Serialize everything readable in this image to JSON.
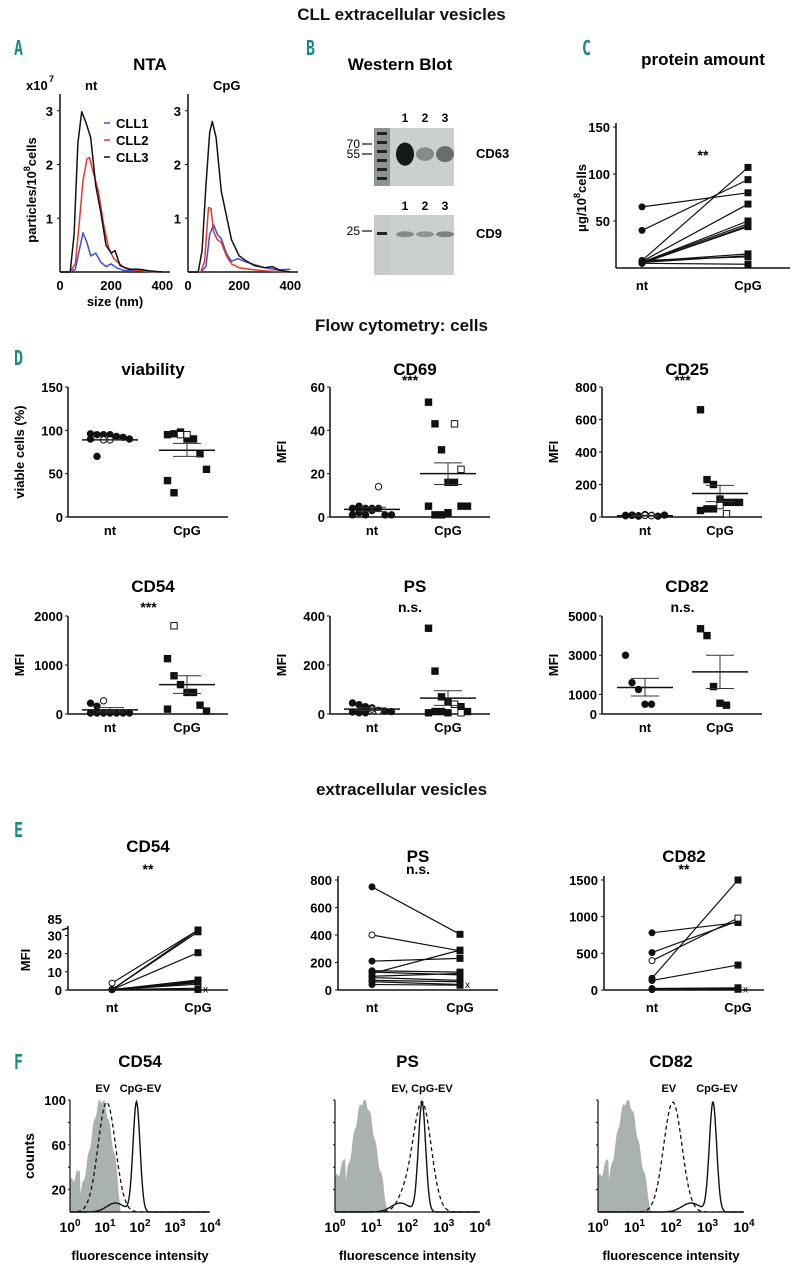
{
  "figure": {
    "main_title": "CLL extracellular vesicles",
    "section_flow_cells": "Flow cytometry: cells",
    "section_ev": "extracellular vesicles",
    "panel_letters": {
      "A": "A",
      "B": "B",
      "C": "C",
      "D": "D",
      "E": "E",
      "F": "F"
    },
    "colors": {
      "accent_letter": "#1a8a87",
      "cll1": "#3a4fd6",
      "cll2": "#e03a2e",
      "cll3": "#111111",
      "histo_fill": "#a9b2b0"
    }
  },
  "chart_data": [
    {
      "id": "A",
      "type": "line",
      "title": "NTA",
      "subplots": [
        {
          "label": "nt",
          "x_ticks": [
            "0",
            "200",
            "400"
          ],
          "xlim": [
            0,
            430
          ],
          "ylim": [
            0,
            3.2
          ],
          "series": [
            {
              "name": "CLL1",
              "color": "#3a4fd6",
              "x": [
                0,
                40,
                60,
                75,
                90,
                105,
                120,
                140,
                160,
                180,
                200,
                220,
                250,
                300,
                350,
                400
              ],
              "y": [
                0,
                0,
                0.05,
                0.4,
                0.73,
                0.55,
                0.3,
                0.35,
                0.18,
                0.1,
                0.15,
                0.08,
                0.03,
                0.03,
                0.01,
                0
              ]
            },
            {
              "name": "CLL2",
              "color": "#e03a2e",
              "x": [
                0,
                40,
                60,
                75,
                90,
                105,
                115,
                130,
                150,
                170,
                190,
                210,
                250,
                300,
                350,
                400
              ],
              "y": [
                0,
                0,
                0.15,
                0.9,
                1.7,
                2.1,
                2.13,
                1.85,
                1.5,
                0.9,
                0.45,
                0.25,
                0.08,
                0.03,
                0.01,
                0
              ]
            },
            {
              "name": "CLL3",
              "color": "#111111",
              "x": [
                0,
                40,
                55,
                70,
                85,
                100,
                120,
                140,
                160,
                180,
                200,
                215,
                235,
                270,
                310,
                350,
                400
              ],
              "y": [
                0,
                0,
                0.7,
                2.4,
                2.98,
                2.8,
                2.5,
                1.6,
                1.1,
                0.5,
                0.35,
                0.4,
                0.12,
                0.05,
                0.05,
                0.02,
                0
              ]
            }
          ]
        },
        {
          "label": "CpG",
          "x_ticks": [
            "0",
            "200",
            "400"
          ],
          "xlim": [
            0,
            430
          ],
          "ylim": [
            0,
            3.2
          ],
          "series": [
            {
              "name": "CLL1",
              "color": "#3a4fd6",
              "x": [
                0,
                50,
                70,
                85,
                100,
                115,
                130,
                150,
                170,
                195,
                220,
                250,
                300,
                350,
                400
              ],
              "y": [
                0,
                0,
                0.1,
                0.7,
                0.88,
                0.7,
                0.62,
                0.35,
                0.2,
                0.25,
                0.2,
                0.15,
                0.08,
                0.04,
                0.05
              ]
            },
            {
              "name": "CLL2",
              "color": "#e03a2e",
              "x": [
                0,
                50,
                65,
                80,
                90,
                100,
                115,
                130,
                150,
                170,
                200,
                240,
                300,
                400
              ],
              "y": [
                0,
                0,
                0.2,
                1.2,
                1.18,
                0.75,
                0.6,
                0.55,
                0.3,
                0.15,
                0.08,
                0.05,
                0.02,
                0
              ]
            },
            {
              "name": "CLL3",
              "color": "#111111",
              "x": [
                0,
                40,
                55,
                70,
                85,
                95,
                110,
                130,
                150,
                170,
                200,
                230,
                260,
                300,
                330,
                360,
                400
              ],
              "y": [
                0,
                0,
                0.4,
                1.6,
                2.6,
                2.8,
                2.5,
                1.5,
                1.05,
                0.6,
                0.3,
                0.2,
                0.12,
                0.08,
                0.1,
                0.03,
                0
              ]
            }
          ]
        }
      ],
      "y_ticks": [
        "1",
        "2",
        "3"
      ],
      "ylabel": "particles/10^8 cells",
      "ylabel_base": "particles/10",
      "ylabel_sup": "8",
      "ylabel_end": "cells",
      "y_multiplier": "x10",
      "y_multiplier_sup": "7",
      "xlabel": "size (nm)",
      "legend": [
        "CLL1",
        "CLL2",
        "CLL3"
      ],
      "legend_position": "top-right"
    },
    {
      "id": "B",
      "type": "image",
      "title": "Western Blot",
      "blots": [
        {
          "target": "CD63",
          "lanes": [
            "1",
            "2",
            "3"
          ],
          "markers": [
            "70",
            "55"
          ],
          "band_intensity": [
            0.95,
            0.35,
            0.5
          ]
        },
        {
          "target": "CD9",
          "lanes": [
            "1",
            "2",
            "3"
          ],
          "markers": [
            "25"
          ],
          "band_intensity": [
            0.35,
            0.3,
            0.4
          ]
        }
      ]
    },
    {
      "id": "C",
      "type": "scatter",
      "title": "protein amount",
      "ylabel_base": "μg/10",
      "ylabel_sup": "8",
      "ylabel_end": "cells",
      "categories": [
        "nt",
        "CpG"
      ],
      "ylim": [
        0,
        150
      ],
      "y_ticks": [
        "50",
        "100",
        "150"
      ],
      "significance": "**",
      "pairs": [
        [
          65,
          80
        ],
        [
          40,
          94
        ],
        [
          8,
          107
        ],
        [
          7,
          68
        ],
        [
          6,
          50
        ],
        [
          6,
          47
        ],
        [
          5,
          44
        ],
        [
          5,
          45
        ],
        [
          7,
          15
        ],
        [
          6,
          13
        ],
        [
          8,
          12
        ],
        [
          5,
          4
        ]
      ]
    },
    {
      "id": "D1",
      "type": "scatter",
      "title": "viability",
      "ylabel": "viable cells (%)",
      "categories": [
        "nt",
        "CpG"
      ],
      "ylim": [
        0,
        150
      ],
      "y_ticks": [
        "0",
        "50",
        "100",
        "150"
      ],
      "significance": "",
      "groups": [
        {
          "name": "nt",
          "filled": [
            96,
            95,
            95,
            95,
            93,
            92,
            90,
            90,
            70
          ],
          "open": [
            89,
            89
          ],
          "mean": 89,
          "sem": [
            89,
            89
          ]
        },
        {
          "name": "CpG",
          "filled": [
            95,
            96,
            98,
            90,
            90,
            73,
            55,
            42,
            28
          ],
          "open": [
            95,
            95
          ],
          "mean": 77,
          "sem": [
            70,
            85
          ]
        }
      ]
    },
    {
      "id": "D2",
      "type": "scatter",
      "title": "CD69",
      "ylabel": "MFI",
      "categories": [
        "nt",
        "CpG"
      ],
      "ylim": [
        0,
        60
      ],
      "y_ticks": [
        "0",
        "20",
        "40",
        "60"
      ],
      "significance": "***",
      "groups": [
        {
          "name": "nt",
          "filled": [
            4,
            5,
            4,
            3,
            4,
            1,
            1,
            1,
            2,
            1,
            4
          ],
          "open": [
            14
          ],
          "mean": 3.5,
          "sem": [
            2.5,
            4.5
          ]
        },
        {
          "name": "CpG",
          "filled": [
            53,
            43,
            31,
            16,
            16,
            5,
            5,
            5,
            1,
            1,
            2
          ],
          "open": [
            43,
            22
          ],
          "mean": 20,
          "sem": [
            15,
            25
          ]
        }
      ]
    },
    {
      "id": "D3",
      "type": "scatter",
      "title": "CD25",
      "ylabel": "MFI",
      "categories": [
        "nt",
        "CpG"
      ],
      "ylim": [
        0,
        800
      ],
      "y_ticks": [
        "0",
        "200",
        "400",
        "600",
        "800"
      ],
      "significance": "***",
      "groups": [
        {
          "name": "nt",
          "filled": [
            10,
            12,
            8,
            15,
            10,
            5,
            12,
            8,
            10,
            5
          ],
          "open": [
            10,
            8
          ],
          "mean": 8,
          "sem": [
            5,
            11
          ]
        },
        {
          "name": "CpG",
          "filled": [
            660,
            230,
            200,
            110,
            90,
            90,
            90,
            40,
            50,
            50
          ],
          "open": [
            70,
            20
          ],
          "mean": 145,
          "sem": [
            95,
            195
          ]
        }
      ]
    },
    {
      "id": "D4",
      "type": "scatter",
      "title": "CD54",
      "ylabel": "MFI",
      "categories": [
        "nt",
        "CpG"
      ],
      "ylim": [
        0,
        2000
      ],
      "y_ticks": [
        "0",
        "1000",
        "2000"
      ],
      "significance": "***",
      "groups": [
        {
          "name": "nt",
          "filled": [
            220,
            160,
            20,
            20,
            20,
            20,
            20,
            20,
            20
          ],
          "open": [
            270
          ],
          "mean": 85,
          "sem": [
            40,
            130
          ]
        },
        {
          "name": "CpG",
          "filled": [
            1130,
            780,
            600,
            440,
            440,
            180,
            60,
            100
          ],
          "open": [
            1800
          ],
          "mean": 600,
          "sem": [
            420,
            780
          ]
        }
      ]
    },
    {
      "id": "D5",
      "type": "scatter",
      "title": "PS",
      "ylabel": "MFI",
      "categories": [
        "nt",
        "CpG"
      ],
      "ylim": [
        0,
        400
      ],
      "y_ticks": [
        "0",
        "200",
        "400"
      ],
      "significance": "n.s.",
      "groups": [
        {
          "name": "nt",
          "filled": [
            45,
            38,
            30,
            25,
            15,
            12,
            10,
            8,
            5,
            5
          ],
          "open": [
            20,
            12
          ],
          "mean": 20,
          "sem": [
            15,
            25
          ]
        },
        {
          "name": "CpG",
          "filled": [
            350,
            175,
            70,
            50,
            40,
            30,
            10,
            5,
            10,
            10,
            5
          ],
          "open": [
            40,
            5
          ],
          "mean": 65,
          "sem": [
            35,
            95
          ]
        }
      ]
    },
    {
      "id": "D6",
      "type": "scatter",
      "title": "CD82",
      "ylabel": "MFI",
      "categories": [
        "nt",
        "CpG"
      ],
      "ylim": [
        0,
        5000
      ],
      "y_ticks": [
        "0",
        "1000",
        "3000",
        "5000"
      ],
      "significance": "n.s.",
      "groups": [
        {
          "name": "nt",
          "filled": [
            3000,
            1600,
            1250,
            500,
            500
          ],
          "open": [],
          "mean": 1350,
          "sem": [
            920,
            1820
          ]
        },
        {
          "name": "CpG",
          "filled": [
            4350,
            4000,
            1400,
            550,
            450
          ],
          "open": [],
          "mean": 2150,
          "sem": [
            1300,
            3000
          ]
        }
      ]
    },
    {
      "id": "E1",
      "type": "scatter",
      "title": "CD54",
      "ylabel": "MFI",
      "categories": [
        "nt",
        "CpG"
      ],
      "ylim": [
        0,
        33
      ],
      "y_ticks": [
        "0",
        "10",
        "20",
        "30"
      ],
      "y_break_label": "85",
      "significance": "**",
      "pairs": [
        [
          3.8,
          34
        ],
        [
          0.2,
          33
        ],
        [
          0.2,
          32
        ],
        [
          0.2,
          20.5
        ],
        [
          0.2,
          5.5
        ],
        [
          0.2,
          5
        ],
        [
          0.2,
          4.5
        ],
        [
          0.2,
          4
        ],
        [
          0.2,
          3.2
        ],
        [
          0.2,
          1
        ],
        [
          0.2,
          0.3
        ]
      ],
      "open_pairs": [
        0,
        9
      ],
      "x_marker": "x"
    },
    {
      "id": "E2",
      "type": "scatter",
      "title": "PS",
      "ylabel": "",
      "categories": [
        "nt",
        "CpG"
      ],
      "ylim": [
        0,
        800
      ],
      "y_ticks": [
        "0",
        "200",
        "400",
        "600",
        "800"
      ],
      "significance": "n.s.",
      "pairs": [
        [
          750,
          405
        ],
        [
          400,
          285
        ],
        [
          210,
          230
        ],
        [
          120,
          290
        ],
        [
          140,
          130
        ],
        [
          130,
          110
        ],
        [
          100,
          120
        ],
        [
          90,
          70
        ],
        [
          70,
          60
        ],
        [
          60,
          40
        ],
        [
          40,
          35
        ]
      ],
      "open_pairs": [
        1
      ],
      "x_marker": "x"
    },
    {
      "id": "E3",
      "type": "scatter",
      "title": "CD82",
      "ylabel": "",
      "categories": [
        "nt",
        "CpG"
      ],
      "ylim": [
        0,
        1500
      ],
      "y_ticks": [
        "0",
        "500",
        "1000",
        "1500"
      ],
      "significance": "**",
      "pairs": [
        [
          780,
          920
        ],
        [
          510,
          940
        ],
        [
          400,
          980
        ],
        [
          160,
          1510
        ],
        [
          130,
          340
        ],
        [
          20,
          30
        ],
        [
          10,
          20
        ],
        [
          5,
          10
        ]
      ],
      "open_pairs": [
        2
      ],
      "x_marker": "x"
    },
    {
      "id": "F1",
      "type": "area",
      "title": "CD54",
      "ylabel": "counts",
      "xlabel": "fluorescence intensity",
      "x_scale": "log",
      "xlim": [
        0,
        4
      ],
      "y_ticks": [
        "20",
        "60",
        "100"
      ],
      "ylim": [
        0,
        100
      ],
      "labels": [
        "EV",
        "CpG-EV"
      ],
      "isotype_peak_log": 0.9,
      "ev_peak_log": 1.05,
      "cpg_peak_log": 1.9
    },
    {
      "id": "F2",
      "type": "area",
      "title": "PS",
      "ylabel": "",
      "xlabel": "fluorescence intensity",
      "x_scale": "log",
      "xlim": [
        0,
        4
      ],
      "y_ticks": [],
      "ylim": [
        0,
        100
      ],
      "labels": [
        "EV, CpG-EV"
      ],
      "isotype_peak_log": 0.8,
      "ev_peak_log": 2.4,
      "cpg_peak_log": 2.4
    },
    {
      "id": "F3",
      "type": "area",
      "title": "CD82",
      "ylabel": "",
      "xlabel": "fluorescence intensity",
      "x_scale": "log",
      "xlim": [
        0,
        4
      ],
      "y_ticks": [],
      "ylim": [
        0,
        100
      ],
      "labels": [
        "EV",
        "CpG-EV"
      ],
      "isotype_peak_log": 0.8,
      "ev_peak_log": 2.05,
      "cpg_peak_log": 3.15
    }
  ],
  "log_ticks": [
    "10",
    "10",
    "10",
    "10",
    "10"
  ],
  "log_exps": [
    "0",
    "1",
    "2",
    "3",
    "4"
  ]
}
